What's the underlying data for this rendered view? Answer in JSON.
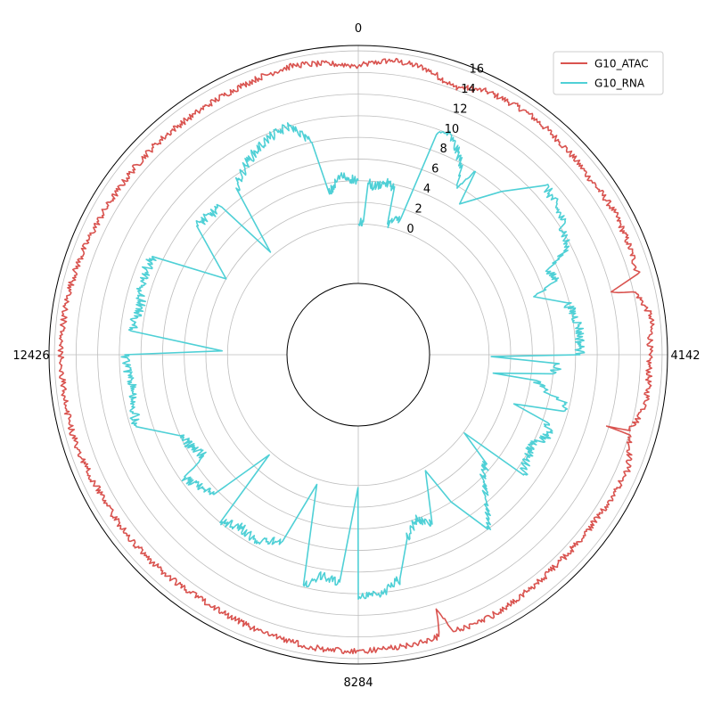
{
  "chart_data": {
    "type": "line",
    "projection": "polar",
    "theta_direction": "clockwise",
    "theta_zero": "top",
    "theta_range": [
      0,
      16568
    ],
    "theta_ticks": [
      0,
      4142,
      8284,
      12426
    ],
    "theta_tick_labels": [
      "0",
      "4142",
      "8284",
      "12426"
    ],
    "r_ticks": [
      0,
      2,
      4,
      6,
      8,
      10,
      12,
      14,
      16
    ],
    "r_tick_labels": [
      "0",
      "2",
      "4",
      "6",
      "8",
      "10",
      "12",
      "14",
      "16"
    ],
    "rlim": [
      -5.5,
      16.5
    ],
    "grid": true,
    "legend_position": "top-right",
    "series": [
      {
        "name": "G10_ATAC",
        "color": "#d9534f",
        "anchors": [
          [
            0,
            14.6
          ],
          [
            300,
            15.3
          ],
          [
            600,
            15.1
          ],
          [
            900,
            14.2
          ],
          [
            1200,
            15.0
          ],
          [
            1600,
            15.2
          ],
          [
            2000,
            15.0
          ],
          [
            2400,
            14.8
          ],
          [
            2800,
            15.0
          ],
          [
            3100,
            14.9
          ],
          [
            3400,
            14.8
          ],
          [
            3500,
            12.0
          ],
          [
            3560,
            14.2
          ],
          [
            3800,
            15.2
          ],
          [
            4142,
            14.8
          ],
          [
            4600,
            14.9
          ],
          [
            4860,
            14.0
          ],
          [
            4880,
            11.8
          ],
          [
            4900,
            14.1
          ],
          [
            5200,
            15.0
          ],
          [
            5600,
            14.7
          ],
          [
            6000,
            14.6
          ],
          [
            6500,
            14.7
          ],
          [
            7000,
            15.0
          ],
          [
            7400,
            15.0
          ],
          [
            7500,
            12.5
          ],
          [
            7550,
            15.0
          ],
          [
            8000,
            15.2
          ],
          [
            8284,
            15.3
          ],
          [
            8700,
            15.3
          ],
          [
            9200,
            15.0
          ],
          [
            9700,
            14.8
          ],
          [
            10200,
            14.9
          ],
          [
            10700,
            15.0
          ],
          [
            11200,
            15.0
          ],
          [
            11700,
            15.3
          ],
          [
            12426,
            15.4
          ],
          [
            13000,
            15.3
          ],
          [
            13500,
            15.0
          ],
          [
            14000,
            14.8
          ],
          [
            14500,
            14.9
          ],
          [
            15000,
            14.8
          ],
          [
            15500,
            15.0
          ],
          [
            16000,
            15.3
          ],
          [
            16568,
            14.6
          ]
        ]
      },
      {
        "name": "G10_RNA",
        "color": "#4fd0d6",
        "anchors": [
          [
            0,
            0.0
          ],
          [
            100,
            0.2
          ],
          [
            150,
            3.8
          ],
          [
            250,
            3.5
          ],
          [
            400,
            4.0
          ],
          [
            560,
            3.8
          ],
          [
            580,
            0.3
          ],
          [
            800,
            1.2
          ],
          [
            900,
            9.5
          ],
          [
            1000,
            10.0
          ],
          [
            1100,
            9.5
          ],
          [
            1300,
            8.0
          ],
          [
            1400,
            6.0
          ],
          [
            1500,
            8.0
          ],
          [
            1560,
            4.7
          ],
          [
            1900,
            8.0
          ],
          [
            2200,
            11.2
          ],
          [
            2600,
            10.5
          ],
          [
            2900,
            9.5
          ],
          [
            3050,
            7.0
          ],
          [
            3200,
            7.5
          ],
          [
            3300,
            5.0
          ],
          [
            3500,
            7.8
          ],
          [
            3800,
            8.5
          ],
          [
            4142,
            8.4
          ],
          [
            4180,
            0.2
          ],
          [
            4260,
            6.5
          ],
          [
            4400,
            6.0
          ],
          [
            4500,
            0.5
          ],
          [
            4520,
            4.5
          ],
          [
            4650,
            5.5
          ],
          [
            4750,
            7.5
          ],
          [
            4850,
            7.6
          ],
          [
            4950,
            3.0
          ],
          [
            5050,
            6.5
          ],
          [
            5200,
            7.0
          ],
          [
            5400,
            6.0
          ],
          [
            5600,
            6.2
          ],
          [
            5800,
            6.8
          ],
          [
            5820,
            0.1
          ],
          [
            6000,
            3.5
          ],
          [
            6200,
            4.0
          ],
          [
            6400,
            6.0
          ],
          [
            6600,
            8.0
          ],
          [
            6800,
            4.0
          ],
          [
            6900,
            0.3
          ],
          [
            7200,
            5.0
          ],
          [
            7400,
            4.0
          ],
          [
            7600,
            5.5
          ],
          [
            7800,
            9.0
          ],
          [
            8000,
            10.0
          ],
          [
            8284,
            10.5
          ],
          [
            8290,
            0.2
          ],
          [
            8500,
            9.0
          ],
          [
            8700,
            8.5
          ],
          [
            8900,
            9.8
          ],
          [
            9100,
            0.5
          ],
          [
            9300,
            6.5
          ],
          [
            9600,
            7.5
          ],
          [
            9900,
            7.2
          ],
          [
            10100,
            8.0
          ],
          [
            10200,
            0.3
          ],
          [
            10400,
            6.5
          ],
          [
            10800,
            7.5
          ],
          [
            10900,
            5.0
          ],
          [
            11300,
            6.0
          ],
          [
            11600,
            9.5
          ],
          [
            12000,
            9.0
          ],
          [
            12426,
            9.5
          ],
          [
            12500,
            0.5
          ],
          [
            12700,
            9.0
          ],
          [
            13000,
            8.5
          ],
          [
            13300,
            9.0
          ],
          [
            13600,
            9.0
          ],
          [
            13800,
            2.0
          ],
          [
            14200,
            7.0
          ],
          [
            14600,
            6.5
          ],
          [
            14700,
            0.4
          ],
          [
            14900,
            7.0
          ],
          [
            15200,
            8.5
          ],
          [
            15500,
            9.5
          ],
          [
            15800,
            10.0
          ],
          [
            16000,
            8.0
          ],
          [
            16100,
            3.0
          ],
          [
            16300,
            4.5
          ],
          [
            16568,
            4.0
          ]
        ]
      }
    ]
  }
}
